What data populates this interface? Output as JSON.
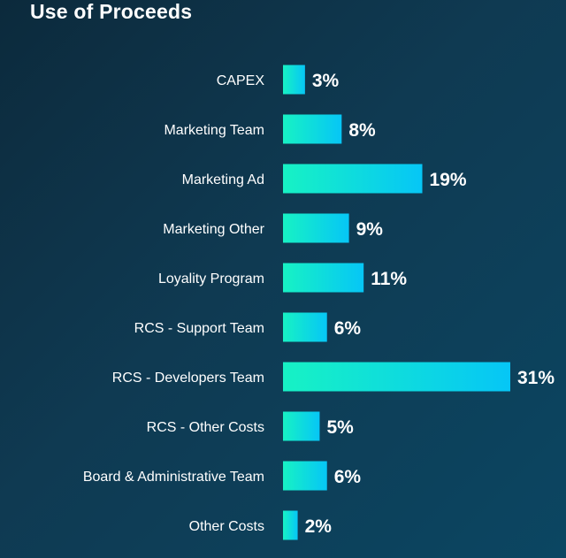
{
  "chart_data": {
    "type": "bar",
    "orientation": "horizontal",
    "title": "Use of Proceeds",
    "categories": [
      "CAPEX",
      "Marketing Team",
      "Marketing Ad",
      "Marketing Other",
      "Loyality Program",
      "RCS - Support Team",
      "RCS - Developers Team",
      "RCS - Other Costs",
      "Board & Administrative Team",
      "Other Costs"
    ],
    "values": [
      3,
      8,
      19,
      9,
      11,
      6,
      31,
      5,
      6,
      2
    ],
    "value_labels": [
      "3%",
      "8%",
      "19%",
      "9%",
      "11%",
      "6%",
      "31%",
      "5%",
      "6%",
      "2%"
    ],
    "unit": "%",
    "xlim": [
      0,
      31
    ],
    "grid": false,
    "legend": "none",
    "colors": {
      "bar_start": "#17f2c4",
      "bar_end": "#06c6f6",
      "text": "#ffffff",
      "background": "#0f3a52"
    }
  }
}
